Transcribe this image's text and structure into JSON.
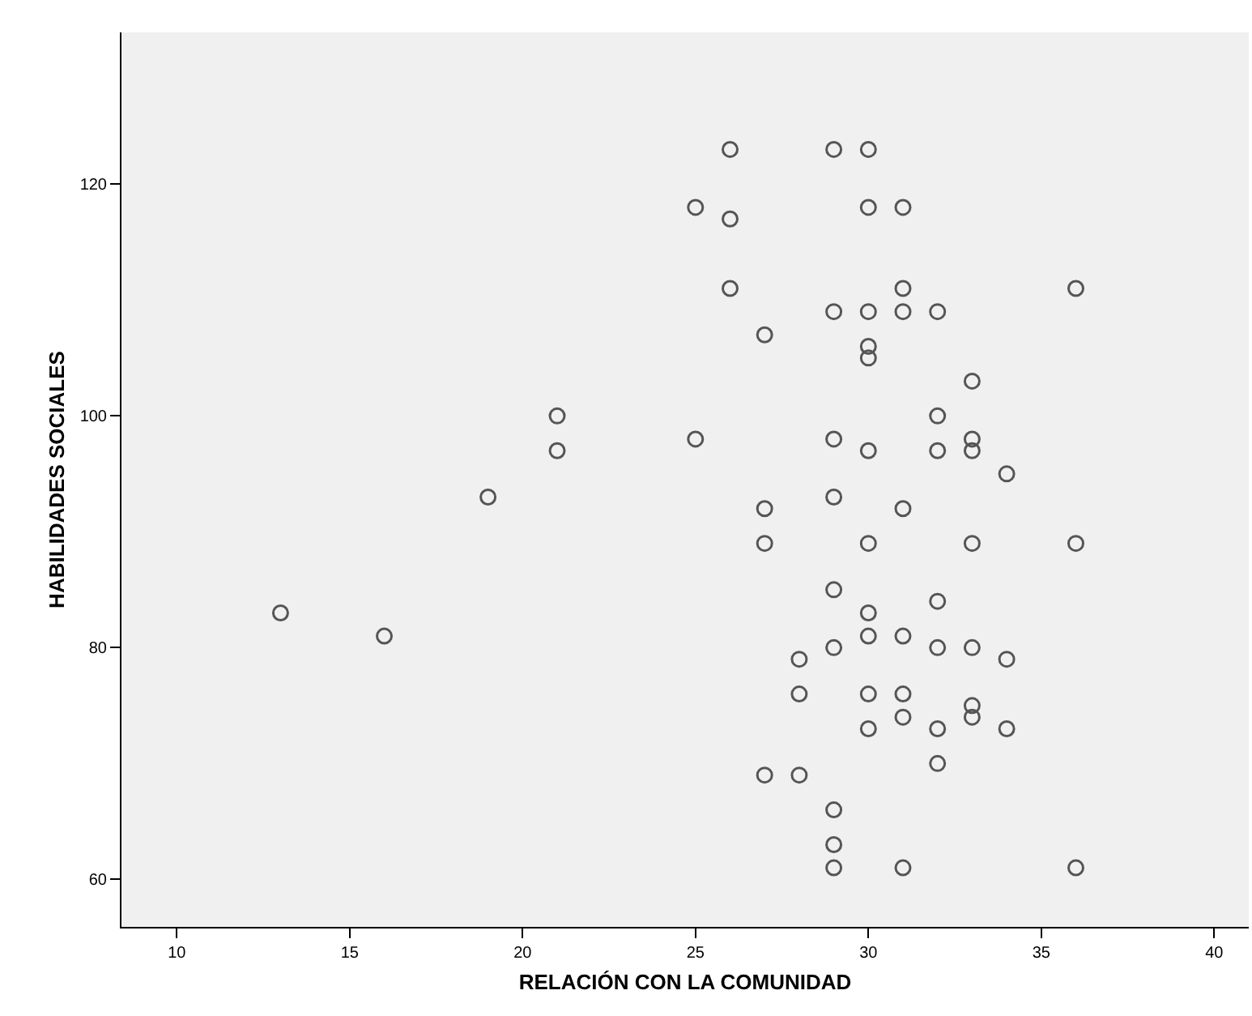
{
  "chart_data": {
    "type": "scatter",
    "xlabel": "RELACIÓN CON LA COMUNIDAD",
    "ylabel": "HABILIDADES SOCIALES",
    "x": [
      13,
      16,
      19,
      21,
      21,
      25,
      25,
      26,
      26,
      26,
      27,
      27,
      27,
      27,
      28,
      28,
      28,
      29,
      29,
      29,
      29,
      29,
      29,
      29,
      29,
      29,
      30,
      30,
      30,
      30,
      30,
      30,
      30,
      30,
      30,
      30,
      30,
      31,
      31,
      31,
      31,
      31,
      31,
      31,
      31,
      32,
      32,
      32,
      32,
      32,
      32,
      32,
      33,
      33,
      33,
      33,
      33,
      33,
      33,
      34,
      34,
      34,
      36,
      36,
      36
    ],
    "values": [
      83,
      81,
      93,
      100,
      97,
      118,
      98,
      123,
      117,
      111,
      107,
      92,
      89,
      69,
      79,
      76,
      69,
      123,
      109,
      98,
      93,
      85,
      80,
      66,
      63,
      61,
      123,
      118,
      109,
      106,
      105,
      97,
      89,
      83,
      81,
      76,
      73,
      118,
      111,
      109,
      92,
      81,
      76,
      74,
      61,
      109,
      100,
      97,
      84,
      80,
      73,
      70,
      103,
      98,
      97,
      89,
      80,
      75,
      74,
      95,
      79,
      73,
      111,
      89,
      61
    ],
    "color": "#555555",
    "marker": "circle",
    "xlim": [
      8.4,
      41
    ],
    "xticks": [
      10,
      15,
      20,
      25,
      30,
      35,
      40
    ],
    "ylim": [
      55.9,
      133.1
    ],
    "yticks": [
      60,
      80,
      100,
      120
    ]
  }
}
